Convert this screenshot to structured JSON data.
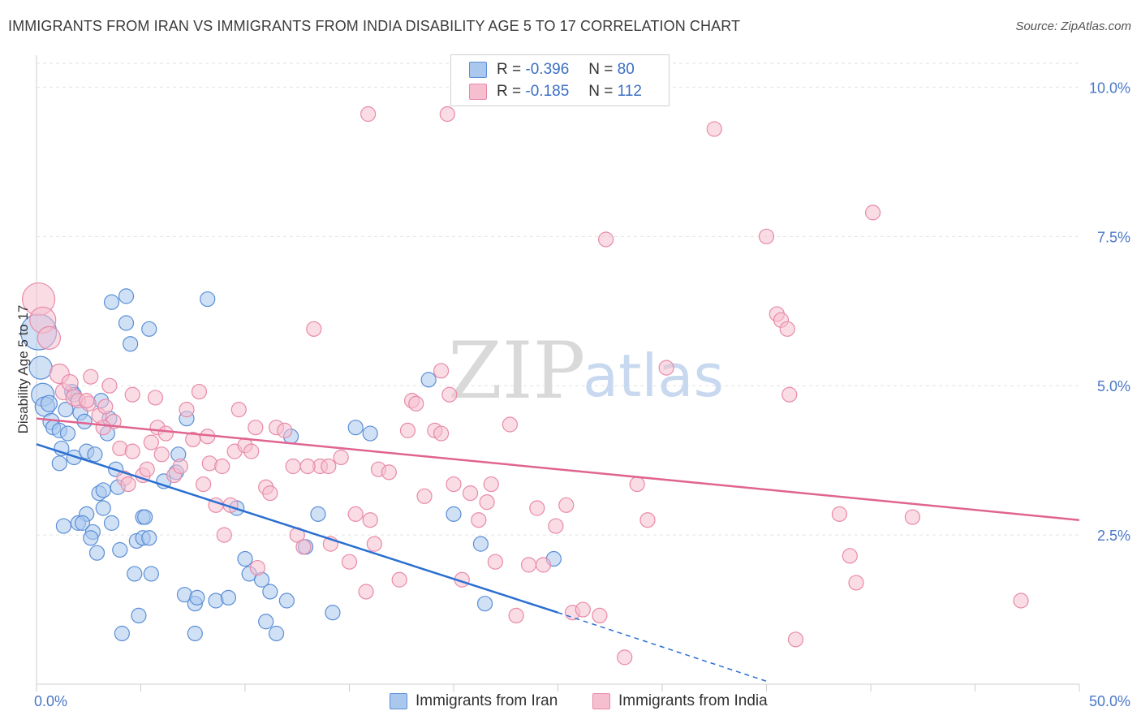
{
  "header": {
    "title": "IMMIGRANTS FROM IRAN VS IMMIGRANTS FROM INDIA DISABILITY AGE 5 TO 17 CORRELATION CHART",
    "source": "Source: ZipAtlas.com"
  },
  "legend": {
    "r_label": "R =",
    "n_label": "N =",
    "iran": {
      "r": "-0.396",
      "n": "80"
    },
    "india": {
      "r": "-0.185",
      "n": "112"
    }
  },
  "watermark": {
    "zip": "ZIP",
    "atlas": "atlas"
  },
  "colors": {
    "iran_fill": "#aac8ee",
    "iran_stroke": "#5b8ed6",
    "iran_line": "#2a6fd1",
    "india_fill": "#f6bfd0",
    "india_stroke": "#e88aa8",
    "india_line": "#e0648f",
    "tick_text": "#4a78c8",
    "grid": "#e2e2e2"
  },
  "chart_data": {
    "type": "scatter",
    "title": "IMMIGRANTS FROM IRAN VS IMMIGRANTS FROM INDIA DISABILITY AGE 5 TO 17 CORRELATION CHART",
    "xlabel": "",
    "ylabel": "Disability Age 5 to 17",
    "xlim": [
      0,
      50
    ],
    "ylim": [
      0,
      10.4
    ],
    "x_tick_labels": [
      "0.0%",
      "50.0%"
    ],
    "y_ticks": [
      {
        "value": 2.5,
        "label": "2.5%"
      },
      {
        "value": 5.0,
        "label": "5.0%"
      },
      {
        "value": 7.5,
        "label": "7.5%"
      },
      {
        "value": 10.0,
        "label": "10.0%"
      }
    ],
    "grid": true,
    "legend_position": "top-center",
    "series": [
      {
        "name": "Immigrants from Iran",
        "r": -0.396,
        "n": 80,
        "trend": {
          "x0": 0,
          "y0": 4.02,
          "x1": 25,
          "y1": 1.2,
          "dash_to_x": 35,
          "dash_to_y": 0.05
        },
        "points": [
          [
            0.1,
            5.9,
            22
          ],
          [
            0.2,
            5.3,
            14
          ],
          [
            0.3,
            4.85,
            14
          ],
          [
            0.4,
            4.65,
            12
          ],
          [
            0.6,
            4.7,
            10
          ],
          [
            0.7,
            4.4,
            10
          ],
          [
            0.8,
            4.3,
            9
          ],
          [
            1.1,
            4.25,
            9
          ],
          [
            1.4,
            4.6,
            9
          ],
          [
            1.5,
            4.2,
            9
          ],
          [
            1.7,
            4.9,
            9
          ],
          [
            1.8,
            4.85,
            9
          ],
          [
            2.1,
            4.55,
            9
          ],
          [
            2.3,
            4.4,
            9
          ],
          [
            3.1,
            4.75,
            9
          ],
          [
            3.4,
            4.2,
            9
          ],
          [
            3.5,
            4.45,
            9
          ],
          [
            1.2,
            3.95,
            9
          ],
          [
            1.1,
            3.7,
            9
          ],
          [
            1.8,
            3.8,
            9
          ],
          [
            2.4,
            3.9,
            9
          ],
          [
            2.8,
            3.85,
            9
          ],
          [
            3.8,
            3.6,
            9
          ],
          [
            3.9,
            3.3,
            9
          ],
          [
            2.4,
            2.85,
            9
          ],
          [
            3.0,
            3.2,
            9
          ],
          [
            3.2,
            2.95,
            9
          ],
          [
            2.0,
            2.7,
            9
          ],
          [
            2.2,
            2.7,
            9
          ],
          [
            2.7,
            2.55,
            9
          ],
          [
            3.6,
            2.7,
            9
          ],
          [
            4.0,
            2.25,
            9
          ],
          [
            2.9,
            2.2,
            9
          ],
          [
            4.8,
            2.4,
            9
          ],
          [
            5.1,
            2.45,
            9
          ],
          [
            5.4,
            2.45,
            9
          ],
          [
            5.1,
            2.8,
            9
          ],
          [
            5.2,
            2.8,
            9
          ],
          [
            4.7,
            1.85,
            9
          ],
          [
            5.5,
            1.85,
            9
          ],
          [
            4.9,
            1.15,
            9
          ],
          [
            4.1,
            0.85,
            9
          ],
          [
            3.6,
            6.4,
            9
          ],
          [
            4.3,
            6.5,
            9
          ],
          [
            4.3,
            6.05,
            9
          ],
          [
            5.4,
            5.95,
            9
          ],
          [
            4.5,
            5.7,
            9
          ],
          [
            8.2,
            6.45,
            9
          ],
          [
            6.8,
            3.85,
            9
          ],
          [
            6.7,
            3.55,
            9
          ],
          [
            6.1,
            3.4,
            9
          ],
          [
            7.2,
            4.45,
            9
          ],
          [
            9.6,
            2.95,
            9
          ],
          [
            10.0,
            2.1,
            9
          ],
          [
            10.2,
            1.85,
            9
          ],
          [
            10.8,
            1.75,
            9
          ],
          [
            7.1,
            1.5,
            9
          ],
          [
            7.6,
            1.35,
            9
          ],
          [
            7.7,
            1.45,
            9
          ],
          [
            8.6,
            1.4,
            9
          ],
          [
            9.2,
            1.45,
            9
          ],
          [
            11.2,
            1.55,
            9
          ],
          [
            12.0,
            1.4,
            9
          ],
          [
            11.0,
            1.05,
            9
          ],
          [
            11.5,
            0.85,
            9
          ],
          [
            7.6,
            0.85,
            9
          ],
          [
            14.2,
            1.2,
            9
          ],
          [
            12.9,
            2.3,
            9
          ],
          [
            13.5,
            2.85,
            9
          ],
          [
            12.2,
            4.15,
            9
          ],
          [
            15.3,
            4.3,
            9
          ],
          [
            16.0,
            4.2,
            9
          ],
          [
            18.8,
            5.1,
            9
          ],
          [
            20.0,
            2.85,
            9
          ],
          [
            21.3,
            2.35,
            9
          ],
          [
            21.5,
            1.35,
            9
          ],
          [
            24.8,
            2.1,
            9
          ],
          [
            2.6,
            2.45,
            9
          ],
          [
            1.3,
            2.65,
            9
          ],
          [
            3.2,
            3.25,
            9
          ]
        ]
      },
      {
        "name": "Immigrants from India",
        "r": -0.185,
        "n": 112,
        "trend": {
          "x0": 0,
          "y0": 4.45,
          "x1": 50,
          "y1": 2.75
        },
        "points": [
          [
            0.1,
            6.45,
            20
          ],
          [
            0.3,
            6.1,
            16
          ],
          [
            0.6,
            5.8,
            14
          ],
          [
            1.1,
            5.2,
            12
          ],
          [
            1.3,
            4.9,
            10
          ],
          [
            1.6,
            5.05,
            10
          ],
          [
            1.8,
            4.8,
            10
          ],
          [
            2.0,
            4.75,
            9
          ],
          [
            2.5,
            4.7,
            9
          ],
          [
            2.6,
            5.15,
            9
          ],
          [
            3.0,
            4.5,
            9
          ],
          [
            3.5,
            5.0,
            9
          ],
          [
            3.7,
            4.4,
            9
          ],
          [
            3.2,
            4.3,
            9
          ],
          [
            4.0,
            3.95,
            9
          ],
          [
            4.2,
            3.45,
            9
          ],
          [
            4.6,
            4.85,
            9
          ],
          [
            4.6,
            3.9,
            9
          ],
          [
            5.1,
            3.5,
            9
          ],
          [
            5.3,
            3.6,
            9
          ],
          [
            5.5,
            4.05,
            9
          ],
          [
            5.7,
            4.8,
            9
          ],
          [
            5.8,
            4.3,
            9
          ],
          [
            6.2,
            4.2,
            9
          ],
          [
            6.6,
            3.5,
            9
          ],
          [
            6.9,
            3.65,
            9
          ],
          [
            7.2,
            4.6,
            9
          ],
          [
            7.5,
            4.1,
            9
          ],
          [
            7.8,
            4.9,
            9
          ],
          [
            8.0,
            3.35,
            9
          ],
          [
            8.3,
            3.7,
            9
          ],
          [
            8.6,
            3.0,
            9
          ],
          [
            8.9,
            3.65,
            9
          ],
          [
            9.3,
            3.0,
            9
          ],
          [
            9.5,
            3.9,
            9
          ],
          [
            9.7,
            4.6,
            9
          ],
          [
            10.0,
            4.0,
            9
          ],
          [
            10.3,
            3.9,
            9
          ],
          [
            10.5,
            4.3,
            9
          ],
          [
            11.0,
            3.3,
            9
          ],
          [
            11.2,
            3.2,
            9
          ],
          [
            11.5,
            4.3,
            9
          ],
          [
            11.9,
            4.25,
            9
          ],
          [
            12.3,
            3.65,
            9
          ],
          [
            12.5,
            2.5,
            9
          ],
          [
            12.8,
            2.3,
            9
          ],
          [
            13.3,
            5.95,
            9
          ],
          [
            13.6,
            3.65,
            9
          ],
          [
            14.0,
            3.65,
            9
          ],
          [
            14.1,
            2.35,
            9
          ],
          [
            14.6,
            3.8,
            9
          ],
          [
            15.0,
            2.05,
            9
          ],
          [
            15.3,
            2.85,
            9
          ],
          [
            15.8,
            1.55,
            9
          ],
          [
            16.0,
            2.75,
            9
          ],
          [
            16.4,
            3.6,
            9
          ],
          [
            16.9,
            3.55,
            9
          ],
          [
            17.4,
            1.75,
            9
          ],
          [
            17.8,
            4.25,
            9
          ],
          [
            18.0,
            4.75,
            9
          ],
          [
            18.2,
            4.7,
            9
          ],
          [
            18.6,
            3.15,
            9
          ],
          [
            19.1,
            4.25,
            9
          ],
          [
            19.4,
            4.2,
            9
          ],
          [
            19.8,
            4.85,
            9
          ],
          [
            20.0,
            3.35,
            9
          ],
          [
            20.4,
            1.75,
            9
          ],
          [
            20.8,
            3.2,
            9
          ],
          [
            21.2,
            2.75,
            9
          ],
          [
            21.6,
            3.05,
            9
          ],
          [
            21.8,
            3.35,
            9
          ],
          [
            22.0,
            2.05,
            9
          ],
          [
            22.7,
            4.35,
            9
          ],
          [
            23.0,
            1.15,
            9
          ],
          [
            23.6,
            2.0,
            9
          ],
          [
            24.0,
            2.95,
            9
          ],
          [
            24.3,
            2.0,
            9
          ],
          [
            24.9,
            2.65,
            9
          ],
          [
            25.4,
            3.0,
            9
          ],
          [
            25.7,
            1.2,
            9
          ],
          [
            26.2,
            1.25,
            9
          ],
          [
            27.0,
            1.15,
            9
          ],
          [
            28.2,
            0.45,
            9
          ],
          [
            28.8,
            3.35,
            9
          ],
          [
            29.3,
            2.75,
            9
          ],
          [
            19.4,
            5.25,
            9
          ],
          [
            15.9,
            9.55,
            9
          ],
          [
            19.7,
            9.55,
            9
          ],
          [
            27.3,
            7.45,
            9
          ],
          [
            32.5,
            9.3,
            9
          ],
          [
            35.0,
            7.5,
            9
          ],
          [
            35.5,
            6.2,
            9
          ],
          [
            35.7,
            6.1,
            9
          ],
          [
            36.0,
            5.95,
            9
          ],
          [
            36.1,
            4.85,
            9
          ],
          [
            36.4,
            0.75,
            9
          ],
          [
            30.2,
            5.3,
            9
          ],
          [
            38.5,
            2.85,
            9
          ],
          [
            39.0,
            2.15,
            9
          ],
          [
            39.3,
            1.7,
            9
          ],
          [
            40.1,
            7.9,
            9
          ],
          [
            42.0,
            2.8,
            9
          ],
          [
            47.2,
            1.4,
            9
          ],
          [
            16.2,
            2.35,
            9
          ],
          [
            13.0,
            3.65,
            9
          ],
          [
            10.6,
            1.95,
            9
          ],
          [
            9.0,
            2.5,
            9
          ],
          [
            8.2,
            4.15,
            9
          ],
          [
            6.0,
            3.85,
            9
          ],
          [
            4.4,
            3.35,
            9
          ],
          [
            3.3,
            4.65,
            9
          ],
          [
            2.4,
            4.75,
            9
          ]
        ]
      }
    ]
  },
  "bottom_legend": {
    "iran_label": "Immigrants from Iran",
    "india_label": "Immigrants from India"
  }
}
